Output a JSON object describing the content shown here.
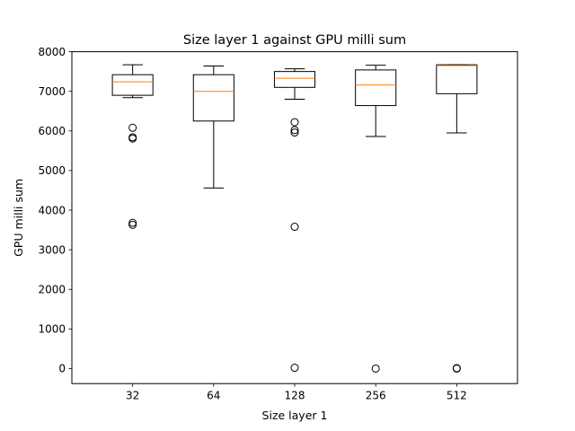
{
  "chart_data": {
    "type": "box",
    "title": "Size layer 1 against GPU milli sum",
    "xlabel": "Size layer 1",
    "ylabel": "GPU milli sum",
    "categories": [
      "32",
      "64",
      "128",
      "256",
      "512"
    ],
    "y_ticks": [
      "0",
      "1000",
      "2000",
      "3000",
      "4000",
      "5000",
      "6000",
      "7000",
      "8000"
    ],
    "ylim": [
      -380,
      8000
    ],
    "grid": false,
    "boxes": [
      {
        "category": "32",
        "whisker_low": 6840,
        "q1": 6900,
        "median": 7240,
        "q3": 7420,
        "whisker_high": 7670,
        "outliers": [
          6080,
          5840,
          5810,
          3680,
          3630
        ]
      },
      {
        "category": "64",
        "whisker_low": 4560,
        "q1": 6250,
        "median": 7000,
        "q3": 7420,
        "whisker_high": 7640,
        "outliers": []
      },
      {
        "category": "128",
        "whisker_low": 6800,
        "q1": 7100,
        "median": 7330,
        "q3": 7500,
        "whisker_high": 7570,
        "outliers": [
          6220,
          6020,
          5960,
          3580,
          20
        ]
      },
      {
        "category": "256",
        "whisker_low": 5860,
        "q1": 6640,
        "median": 7160,
        "q3": 7540,
        "whisker_high": 7660,
        "outliers": [
          0
        ]
      },
      {
        "category": "512",
        "whisker_low": 5950,
        "q1": 6940,
        "median": 7650,
        "q3": 7670,
        "whisker_high": 7670,
        "outliers": [
          0,
          10
        ]
      }
    ],
    "colors": {
      "box": "#000000",
      "median": "#ff7f0e",
      "background": "#ffffff"
    }
  }
}
